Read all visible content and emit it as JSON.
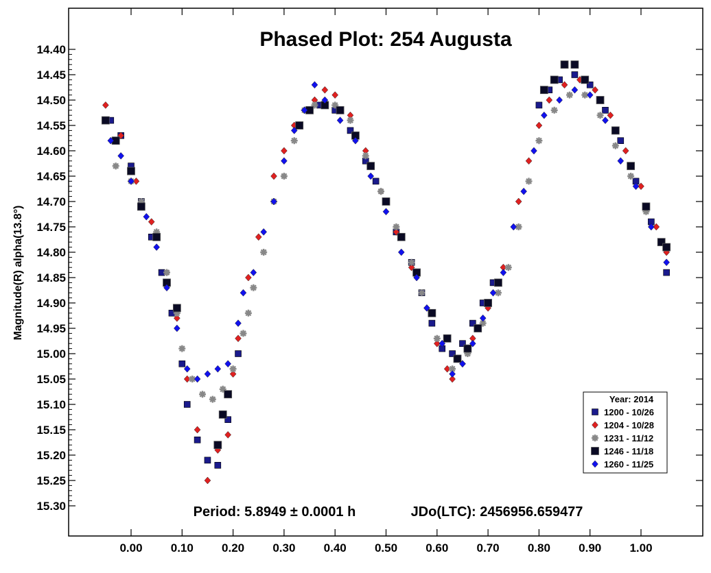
{
  "chart_data": {
    "type": "scatter",
    "title": "Phased Plot: 254 Augusta",
    "xlabel": "",
    "ylabel": "Magnitude(R) alpha(13.8°)",
    "xlim": [
      -0.12,
      1.12
    ],
    "ylim": [
      15.35,
      14.35
    ],
    "y_inverted": true,
    "grid": false,
    "x_ticks": [
      "0.00",
      "0.10",
      "0.20",
      "0.30",
      "0.40",
      "0.50",
      "0.60",
      "0.70",
      "0.80",
      "0.90",
      "1.00"
    ],
    "y_ticks": [
      "14.40",
      "14.45",
      "14.50",
      "14.55",
      "14.60",
      "14.65",
      "14.70",
      "14.75",
      "14.80",
      "14.85",
      "14.90",
      "14.95",
      "15.00",
      "15.05",
      "15.10",
      "15.15",
      "15.20",
      "15.25",
      "15.30"
    ],
    "annotations": {
      "period": "Period: 5.8949 ± 0.0001 h",
      "epoch": "JDo(LTC): 2456956.659477"
    },
    "legend": {
      "title": "Year: 2014",
      "position": "bottom-right"
    },
    "series": [
      {
        "name": "1200 - 10/26",
        "color": "#1a1a8c",
        "marker": "square",
        "points": [
          [
            -0.04,
            14.54
          ],
          [
            -0.02,
            14.57
          ],
          [
            0.0,
            14.63
          ],
          [
            0.02,
            14.7
          ],
          [
            0.04,
            14.77
          ],
          [
            0.06,
            14.84
          ],
          [
            0.08,
            14.92
          ],
          [
            0.1,
            15.02
          ],
          [
            0.11,
            15.1
          ],
          [
            0.13,
            15.17
          ],
          [
            0.15,
            15.21
          ],
          [
            0.17,
            15.22
          ],
          [
            0.19,
            15.13
          ],
          [
            0.21,
            15.0
          ],
          [
            0.33,
            14.55
          ],
          [
            0.35,
            14.52
          ],
          [
            0.37,
            14.51
          ],
          [
            0.4,
            14.52
          ],
          [
            0.43,
            14.56
          ],
          [
            0.46,
            14.62
          ],
          [
            0.48,
            14.66
          ],
          [
            0.5,
            14.7
          ],
          [
            0.52,
            14.76
          ],
          [
            0.55,
            14.82
          ],
          [
            0.57,
            14.88
          ],
          [
            0.59,
            14.94
          ],
          [
            0.61,
            14.99
          ],
          [
            0.63,
            15.0
          ],
          [
            0.65,
            14.98
          ],
          [
            0.67,
            14.94
          ],
          [
            0.69,
            14.9
          ],
          [
            0.71,
            14.86
          ],
          [
            0.8,
            14.51
          ],
          [
            0.82,
            14.48
          ],
          [
            0.84,
            14.46
          ],
          [
            0.87,
            14.45
          ],
          [
            0.9,
            14.47
          ],
          [
            0.93,
            14.52
          ],
          [
            0.96,
            14.58
          ],
          [
            0.99,
            14.66
          ],
          [
            1.02,
            14.74
          ],
          [
            1.05,
            14.84
          ]
        ]
      },
      {
        "name": "1204 - 10/28",
        "color": "#e02020",
        "marker": "diamond",
        "points": [
          [
            -0.05,
            14.51
          ],
          [
            -0.02,
            14.57
          ],
          [
            0.01,
            14.66
          ],
          [
            0.04,
            14.74
          ],
          [
            0.07,
            14.84
          ],
          [
            0.09,
            14.93
          ],
          [
            0.11,
            15.05
          ],
          [
            0.13,
            15.15
          ],
          [
            0.15,
            15.25
          ],
          [
            0.17,
            15.19
          ],
          [
            0.19,
            15.16
          ],
          [
            0.2,
            15.04
          ],
          [
            0.21,
            14.97
          ],
          [
            0.23,
            14.85
          ],
          [
            0.25,
            14.77
          ],
          [
            0.28,
            14.65
          ],
          [
            0.3,
            14.6
          ],
          [
            0.32,
            14.55
          ],
          [
            0.34,
            14.52
          ],
          [
            0.36,
            14.5
          ],
          [
            0.38,
            14.48
          ],
          [
            0.4,
            14.49
          ],
          [
            0.43,
            14.53
          ],
          [
            0.46,
            14.6
          ],
          [
            0.49,
            14.68
          ],
          [
            0.52,
            14.76
          ],
          [
            0.55,
            14.83
          ],
          [
            0.58,
            14.91
          ],
          [
            0.6,
            14.98
          ],
          [
            0.62,
            15.03
          ],
          [
            0.63,
            15.05
          ],
          [
            0.65,
            15.02
          ],
          [
            0.67,
            14.97
          ],
          [
            0.7,
            14.91
          ],
          [
            0.73,
            14.83
          ],
          [
            0.76,
            14.7
          ],
          [
            0.78,
            14.62
          ],
          [
            0.8,
            14.55
          ],
          [
            0.82,
            14.5
          ],
          [
            0.85,
            14.47
          ],
          [
            0.88,
            14.46
          ],
          [
            0.91,
            14.48
          ],
          [
            0.94,
            14.53
          ],
          [
            0.97,
            14.6
          ],
          [
            1.0,
            14.67
          ],
          [
            1.03,
            14.75
          ],
          [
            1.05,
            14.8
          ]
        ]
      },
      {
        "name": "1231 - 11/12",
        "color": "#888888",
        "marker": "asterisk",
        "points": [
          [
            -0.03,
            14.63
          ],
          [
            0.0,
            14.66
          ],
          [
            0.02,
            14.7
          ],
          [
            0.05,
            14.76
          ],
          [
            0.07,
            14.84
          ],
          [
            0.09,
            14.92
          ],
          [
            0.1,
            14.99
          ],
          [
            0.12,
            15.05
          ],
          [
            0.14,
            15.08
          ],
          [
            0.16,
            15.09
          ],
          [
            0.18,
            15.07
          ],
          [
            0.2,
            15.03
          ],
          [
            0.22,
            14.96
          ],
          [
            0.23,
            14.92
          ],
          [
            0.24,
            14.87
          ],
          [
            0.26,
            14.8
          ],
          [
            0.28,
            14.7
          ],
          [
            0.3,
            14.65
          ],
          [
            0.32,
            14.58
          ],
          [
            0.34,
            14.52
          ],
          [
            0.36,
            14.51
          ],
          [
            0.4,
            14.51
          ],
          [
            0.43,
            14.54
          ],
          [
            0.46,
            14.61
          ],
          [
            0.49,
            14.68
          ],
          [
            0.52,
            14.75
          ],
          [
            0.55,
            14.82
          ],
          [
            0.57,
            14.88
          ],
          [
            0.6,
            14.97
          ],
          [
            0.63,
            15.03
          ],
          [
            0.66,
            15.0
          ],
          [
            0.69,
            14.94
          ],
          [
            0.72,
            14.88
          ],
          [
            0.74,
            14.83
          ],
          [
            0.76,
            14.75
          ],
          [
            0.78,
            14.66
          ],
          [
            0.8,
            14.58
          ],
          [
            0.83,
            14.52
          ],
          [
            0.86,
            14.49
          ],
          [
            0.89,
            14.49
          ],
          [
            0.92,
            14.53
          ],
          [
            0.95,
            14.59
          ],
          [
            0.98,
            14.65
          ],
          [
            1.01,
            14.72
          ],
          [
            1.04,
            14.78
          ]
        ]
      },
      {
        "name": "1246 - 11/18",
        "color": "#0a0a24",
        "marker": "square-large",
        "points": [
          [
            -0.05,
            14.54
          ],
          [
            -0.03,
            14.58
          ],
          [
            0.0,
            14.64
          ],
          [
            0.02,
            14.71
          ],
          [
            0.05,
            14.77
          ],
          [
            0.07,
            14.86
          ],
          [
            0.09,
            14.91
          ],
          [
            0.17,
            15.18
          ],
          [
            0.18,
            15.12
          ],
          [
            0.19,
            15.08
          ],
          [
            0.33,
            14.55
          ],
          [
            0.35,
            14.52
          ],
          [
            0.38,
            14.51
          ],
          [
            0.41,
            14.52
          ],
          [
            0.44,
            14.57
          ],
          [
            0.47,
            14.63
          ],
          [
            0.5,
            14.7
          ],
          [
            0.53,
            14.77
          ],
          [
            0.56,
            14.84
          ],
          [
            0.59,
            14.92
          ],
          [
            0.62,
            14.97
          ],
          [
            0.64,
            15.01
          ],
          [
            0.66,
            14.99
          ],
          [
            0.68,
            14.95
          ],
          [
            0.7,
            14.9
          ],
          [
            0.72,
            14.86
          ],
          [
            0.81,
            14.48
          ],
          [
            0.83,
            14.46
          ],
          [
            0.85,
            14.43
          ],
          [
            0.87,
            14.43
          ],
          [
            0.89,
            14.46
          ],
          [
            0.92,
            14.5
          ],
          [
            0.95,
            14.56
          ],
          [
            0.98,
            14.63
          ],
          [
            1.01,
            14.71
          ],
          [
            1.04,
            14.78
          ],
          [
            1.05,
            14.79
          ]
        ]
      },
      {
        "name": "1260 - 11/25",
        "color": "#1111ee",
        "marker": "diamond",
        "points": [
          [
            -0.04,
            14.58
          ],
          [
            -0.02,
            14.61
          ],
          [
            0.0,
            14.66
          ],
          [
            0.03,
            14.73
          ],
          [
            0.05,
            14.79
          ],
          [
            0.07,
            14.87
          ],
          [
            0.09,
            14.95
          ],
          [
            0.11,
            15.03
          ],
          [
            0.13,
            15.05
          ],
          [
            0.15,
            15.04
          ],
          [
            0.17,
            15.03
          ],
          [
            0.19,
            15.02
          ],
          [
            0.21,
            14.94
          ],
          [
            0.22,
            14.88
          ],
          [
            0.24,
            14.84
          ],
          [
            0.26,
            14.76
          ],
          [
            0.28,
            14.7
          ],
          [
            0.3,
            14.62
          ],
          [
            0.32,
            14.56
          ],
          [
            0.34,
            14.52
          ],
          [
            0.36,
            14.47
          ],
          [
            0.38,
            14.5
          ],
          [
            0.41,
            14.54
          ],
          [
            0.44,
            14.58
          ],
          [
            0.47,
            14.65
          ],
          [
            0.5,
            14.72
          ],
          [
            0.53,
            14.8
          ],
          [
            0.56,
            14.85
          ],
          [
            0.58,
            14.91
          ],
          [
            0.61,
            14.98
          ],
          [
            0.63,
            15.04
          ],
          [
            0.65,
            15.02
          ],
          [
            0.67,
            14.98
          ],
          [
            0.69,
            14.93
          ],
          [
            0.71,
            14.88
          ],
          [
            0.73,
            14.84
          ],
          [
            0.75,
            14.75
          ],
          [
            0.77,
            14.68
          ],
          [
            0.79,
            14.6
          ],
          [
            0.81,
            14.53
          ],
          [
            0.84,
            14.5
          ],
          [
            0.87,
            14.48
          ],
          [
            0.9,
            14.49
          ],
          [
            0.93,
            14.54
          ],
          [
            0.96,
            14.62
          ],
          [
            0.99,
            14.67
          ],
          [
            1.02,
            14.75
          ],
          [
            1.05,
            14.82
          ]
        ]
      }
    ]
  }
}
